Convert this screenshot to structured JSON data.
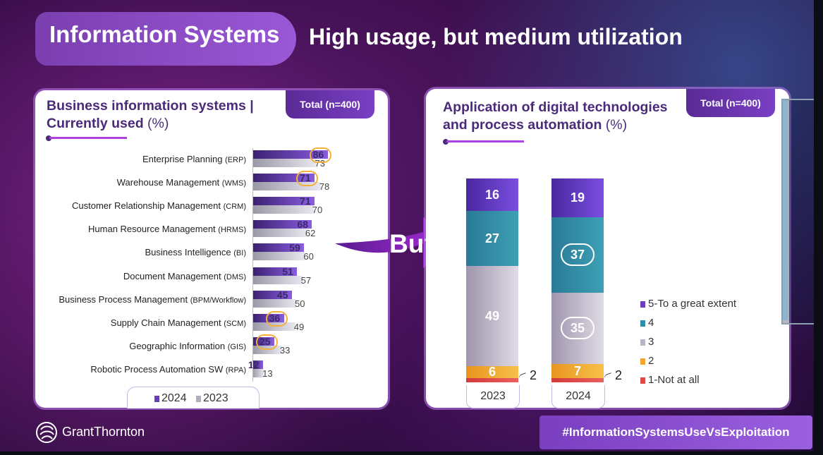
{
  "header": {
    "section": "Information Systems",
    "headline": "High usage, but medium utilization"
  },
  "arrow_text": "But",
  "left_panel": {
    "title_line1": "Business information systems |",
    "title_line2_bold": "Currently used",
    "title_unit": "(%)",
    "total": "Total (n=400)",
    "legend": [
      "2024",
      "2023"
    ]
  },
  "right_panel": {
    "title_line1": "Application of digital technologies",
    "title_line2_bold": "and process automation",
    "title_unit": "(%)",
    "total": "Total (n=400)"
  },
  "footer": {
    "brand": "GrantThornton",
    "hashtag": "#InformationSystemsUseVsExploitation"
  },
  "colors": {
    "bar_2024": "#6a3cc0",
    "bar_2023": "#b0aebb",
    "highlight_circle": "#f3b13c",
    "seg_5": "#6a3cc0",
    "seg_4": "#2f8fa6",
    "seg_3": "#bdb3c8",
    "seg_2": "#f1a531",
    "seg_1": "#e14a4a"
  },
  "chart_data": [
    {
      "type": "bar",
      "orientation": "horizontal",
      "categories": [
        {
          "name": "Enterprise Planning",
          "abbr": "(ERP)"
        },
        {
          "name": "Warehouse Management",
          "abbr": "(WMS)"
        },
        {
          "name": "Customer Relationship Management",
          "abbr": "(CRM)"
        },
        {
          "name": "Human Resource Management",
          "abbr": "(HRMS)"
        },
        {
          "name": "Business Intelligence",
          "abbr": "(BI)"
        },
        {
          "name": "Document Management",
          "abbr": "(DMS)"
        },
        {
          "name": "Business Process Management",
          "abbr": "(BPM/Workflow)"
        },
        {
          "name": "Supply Chain Management",
          "abbr": "(SCM)"
        },
        {
          "name": "Geographic Information",
          "abbr": "(GIS)"
        },
        {
          "name": "Robotic Process Automation SW",
          "abbr": "(RPA)"
        }
      ],
      "series": [
        {
          "name": "2024",
          "values": [
            86,
            71,
            71,
            68,
            59,
            51,
            45,
            36,
            25,
            12
          ]
        },
        {
          "name": "2023",
          "values": [
            73,
            78,
            70,
            62,
            60,
            57,
            50,
            49,
            33,
            13
          ]
        }
      ],
      "highlighted_2024": [
        0,
        1,
        7,
        8
      ],
      "xlim": [
        0,
        100
      ]
    },
    {
      "type": "bar",
      "stacked": true,
      "categories": [
        "2023",
        "2024"
      ],
      "series": [
        {
          "name": "1-Not at all",
          "values": [
            2,
            2
          ]
        },
        {
          "name": "2",
          "values": [
            6,
            7
          ]
        },
        {
          "name": "3",
          "values": [
            49,
            35
          ]
        },
        {
          "name": "4",
          "values": [
            27,
            37
          ]
        },
        {
          "name": "5-To a great extent",
          "values": [
            16,
            19
          ]
        }
      ],
      "highlighted": {
        "2024": [
          "4",
          "3"
        ]
      },
      "ylim": [
        0,
        100
      ]
    }
  ]
}
